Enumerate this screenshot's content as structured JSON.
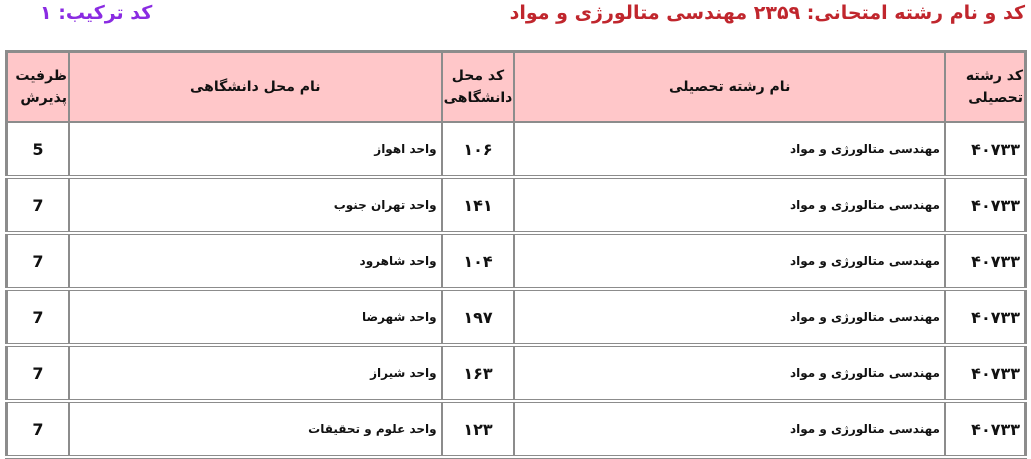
{
  "header": {
    "title": "کد و نام رشته امتحانی: ۲۳۵۹  مهندسی متالورژی و مواد",
    "combo_code": "کد ترکیب: ۱"
  },
  "table": {
    "columns": [
      "کد رشته تحصیلی",
      "نام رشته تحصیلی",
      "کد محل دانشگاهی",
      "نام محل دانشگاهی",
      "ظرفیت پذیرش"
    ],
    "rows": [
      {
        "field_code": "۴۰۷۳۳",
        "field_name": "مهندسی متالورژی و مواد",
        "site_code": "۱۰۶",
        "site_name": "واحد اهواز",
        "capacity": "5"
      },
      {
        "field_code": "۴۰۷۳۳",
        "field_name": "مهندسی متالورژی و مواد",
        "site_code": "۱۴۱",
        "site_name": "واحد تهران جنوب",
        "capacity": "7"
      },
      {
        "field_code": "۴۰۷۳۳",
        "field_name": "مهندسی متالورژی و مواد",
        "site_code": "۱۰۴",
        "site_name": "واحد شاهرود",
        "capacity": "7"
      },
      {
        "field_code": "۴۰۷۳۳",
        "field_name": "مهندسی متالورژی و مواد",
        "site_code": "۱۹۷",
        "site_name": "واحد شهرضا",
        "capacity": "7"
      },
      {
        "field_code": "۴۰۷۳۳",
        "field_name": "مهندسی متالورژی و مواد",
        "site_code": "۱۶۳",
        "site_name": "واحد شیراز",
        "capacity": "7"
      },
      {
        "field_code": "۴۰۷۳۳",
        "field_name": "مهندسی متالورژی و مواد",
        "site_code": "۱۲۳",
        "site_name": "واحد علوم و تحقیقات",
        "capacity": "7"
      }
    ]
  },
  "colors": {
    "title": "#c0262d",
    "combo": "#8a2be2",
    "header_bg": "#ffc7c9",
    "border": "#8c8c8c"
  }
}
